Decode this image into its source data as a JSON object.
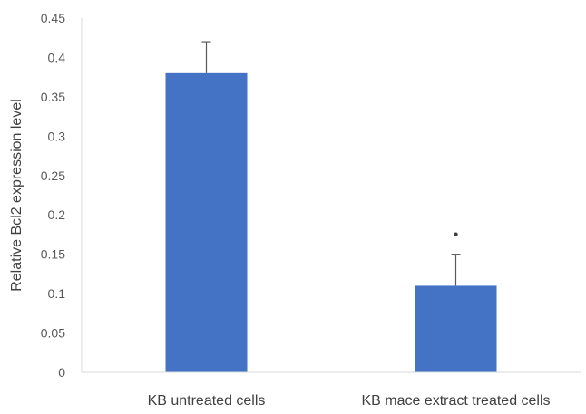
{
  "chart_data": {
    "type": "bar",
    "categories": [
      "KB untreated cells",
      "KB mace extract treated cells"
    ],
    "values": [
      0.38,
      0.11
    ],
    "error_upper": [
      0.42,
      0.15
    ],
    "significance": [
      "",
      "*"
    ],
    "title": "",
    "xlabel": "",
    "ylabel": "Relative Bcl2 expression level",
    "ylim": [
      0,
      0.45
    ],
    "yticks": [
      "0",
      "0.05",
      "0.1",
      "0.15",
      "0.2",
      "0.25",
      "0.3",
      "0.35",
      "0.4",
      "0.45"
    ],
    "grid": false,
    "legend": "none",
    "bar_color": "#4472C4",
    "axis_color": "#D9D9D9",
    "error_bar_color": "#595959"
  }
}
